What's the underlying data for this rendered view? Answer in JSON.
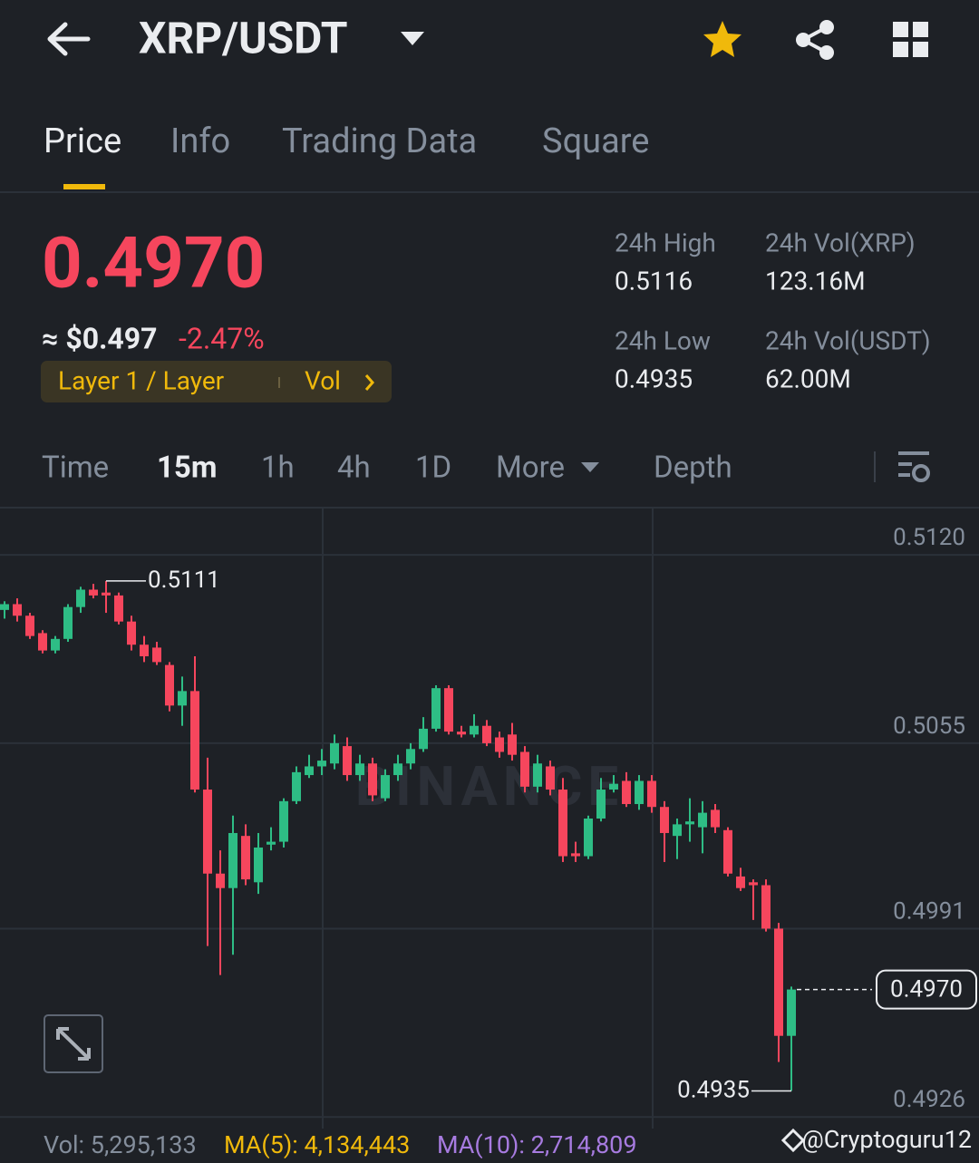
{
  "header": {
    "title": "XRP/USDT"
  },
  "tabs": [
    "Price",
    "Info",
    "Trading Data",
    "Square"
  ],
  "price": {
    "last": "0.4970",
    "usd": "≈ $0.497",
    "change": "-2.47%",
    "tag": "Layer 1 / Layer",
    "tag_extra": "Vol"
  },
  "stats": [
    {
      "label": "24h High",
      "value": "0.5116"
    },
    {
      "label": "24h Vol(XRP)",
      "value": "123.16M"
    },
    {
      "label": "24h Low",
      "value": "0.4935"
    },
    {
      "label": "24h Vol(USDT)",
      "value": "62.00M"
    }
  ],
  "intervals": [
    "Time",
    "15m",
    "1h",
    "4h",
    "1D",
    "More",
    "Depth"
  ],
  "chart_data": {
    "type": "candlestick",
    "watermark": "BINANCE",
    "up_color": "#2ebd85",
    "down_color": "#f6465d",
    "ylim": [
      0.4922,
      0.5136
    ],
    "yticks": [
      {
        "value": 0.512,
        "label": "0.5120"
      },
      {
        "value": 0.5055,
        "label": "0.5055"
      },
      {
        "value": 0.4991,
        "label": "0.4991"
      },
      {
        "value": 0.4926,
        "label": "0.4926"
      }
    ],
    "grid": true,
    "open": [
      0.5101,
      0.5103,
      0.5099,
      0.5093,
      0.5087,
      0.5091,
      0.5102,
      0.5108,
      0.5107,
      0.5106,
      0.5097,
      0.5089,
      0.5088,
      0.5082,
      0.5068,
      0.5073,
      0.5039,
      0.501,
      0.5005,
      0.5023,
      0.5007,
      0.502,
      0.5021,
      0.5035,
      0.5044,
      0.5047,
      0.5048,
      0.5054,
      0.5044,
      0.5048,
      0.5036,
      0.5044,
      0.5048,
      0.5053,
      0.506,
      0.5074,
      0.5059,
      0.5058,
      0.5061,
      0.5057,
      0.5058,
      0.5052,
      0.504,
      0.5047,
      0.5039,
      0.5017,
      0.5016,
      0.5029,
      0.5039,
      0.5042,
      0.5034,
      0.5042,
      0.5033,
      0.5023,
      0.5027,
      0.5026,
      0.5032,
      0.5025,
      0.5009,
      0.5007,
      0.5006,
      0.4991,
      0.4954
    ],
    "high": [
      0.5104,
      0.5105,
      0.51,
      0.5094,
      0.5092,
      0.5103,
      0.5109,
      0.511,
      0.5111,
      0.5107,
      0.5099,
      0.5092,
      0.509,
      0.5083,
      0.5078,
      0.5085,
      0.505,
      0.5018,
      0.503,
      0.5027,
      0.5024,
      0.5026,
      0.5036,
      0.5047,
      0.5051,
      0.5053,
      0.5058,
      0.5057,
      0.5051,
      0.505,
      0.5046,
      0.5051,
      0.5055,
      0.5064,
      0.5075,
      0.5075,
      0.5061,
      0.5065,
      0.5063,
      0.5059,
      0.5062,
      0.5054,
      0.5051,
      0.5049,
      0.5043,
      0.5021,
      0.503,
      0.5043,
      0.5044,
      0.5045,
      0.5044,
      0.5044,
      0.5035,
      0.5029,
      0.5036,
      0.5035,
      0.5034,
      0.5026,
      0.5012,
      0.5008,
      0.5008,
      0.4993,
      0.4971
    ],
    "low": [
      0.5098,
      0.5097,
      0.5091,
      0.5086,
      0.5086,
      0.509,
      0.51,
      0.5105,
      0.51,
      0.5096,
      0.5087,
      0.5083,
      0.5082,
      0.5066,
      0.5061,
      0.5038,
      0.4985,
      0.4975,
      0.4982,
      0.5006,
      0.5003,
      0.5018,
      0.5019,
      0.5034,
      0.5043,
      0.5044,
      0.5046,
      0.5042,
      0.5042,
      0.5035,
      0.5035,
      0.5042,
      0.5046,
      0.5052,
      0.5059,
      0.5058,
      0.5057,
      0.5057,
      0.5054,
      0.505,
      0.5049,
      0.5038,
      0.5038,
      0.5037,
      0.5014,
      0.5014,
      0.5015,
      0.5028,
      0.5038,
      0.5033,
      0.5032,
      0.5031,
      0.5014,
      0.5015,
      0.5021,
      0.5017,
      0.5024,
      0.5009,
      0.5004,
      0.4994,
      0.499,
      0.4945,
      0.4935
    ],
    "close": [
      0.5103,
      0.5099,
      0.5092,
      0.5087,
      0.5091,
      0.5102,
      0.5108,
      0.5106,
      0.5106,
      0.5097,
      0.5089,
      0.5085,
      0.5083,
      0.5068,
      0.5073,
      0.5039,
      0.501,
      0.5005,
      0.5024,
      0.5008,
      0.5019,
      0.5021,
      0.5035,
      0.5045,
      0.5047,
      0.5049,
      0.5055,
      0.5044,
      0.5048,
      0.5037,
      0.5044,
      0.5048,
      0.5053,
      0.506,
      0.5074,
      0.5059,
      0.5058,
      0.5061,
      0.5055,
      0.5052,
      0.5051,
      0.504,
      0.5048,
      0.5039,
      0.5016,
      0.5016,
      0.5029,
      0.5039,
      0.5041,
      0.5034,
      0.5042,
      0.5033,
      0.5024,
      0.5027,
      0.5028,
      0.5031,
      0.5026,
      0.501,
      0.5005,
      0.5006,
      0.4991,
      0.4954,
      0.497
    ],
    "annotations": {
      "high": {
        "value": 0.5111,
        "label": "0.5111"
      },
      "low": {
        "value": 0.4935,
        "label": "0.4935"
      },
      "last": {
        "value": 0.497,
        "label": "0.4970"
      }
    }
  },
  "footer": {
    "vol": "Vol: 5,295,133",
    "ma5": "MA(5): 4,134,443",
    "ma10": "MA(10): 2,714,809",
    "credit": "@Cryptoguru12"
  }
}
